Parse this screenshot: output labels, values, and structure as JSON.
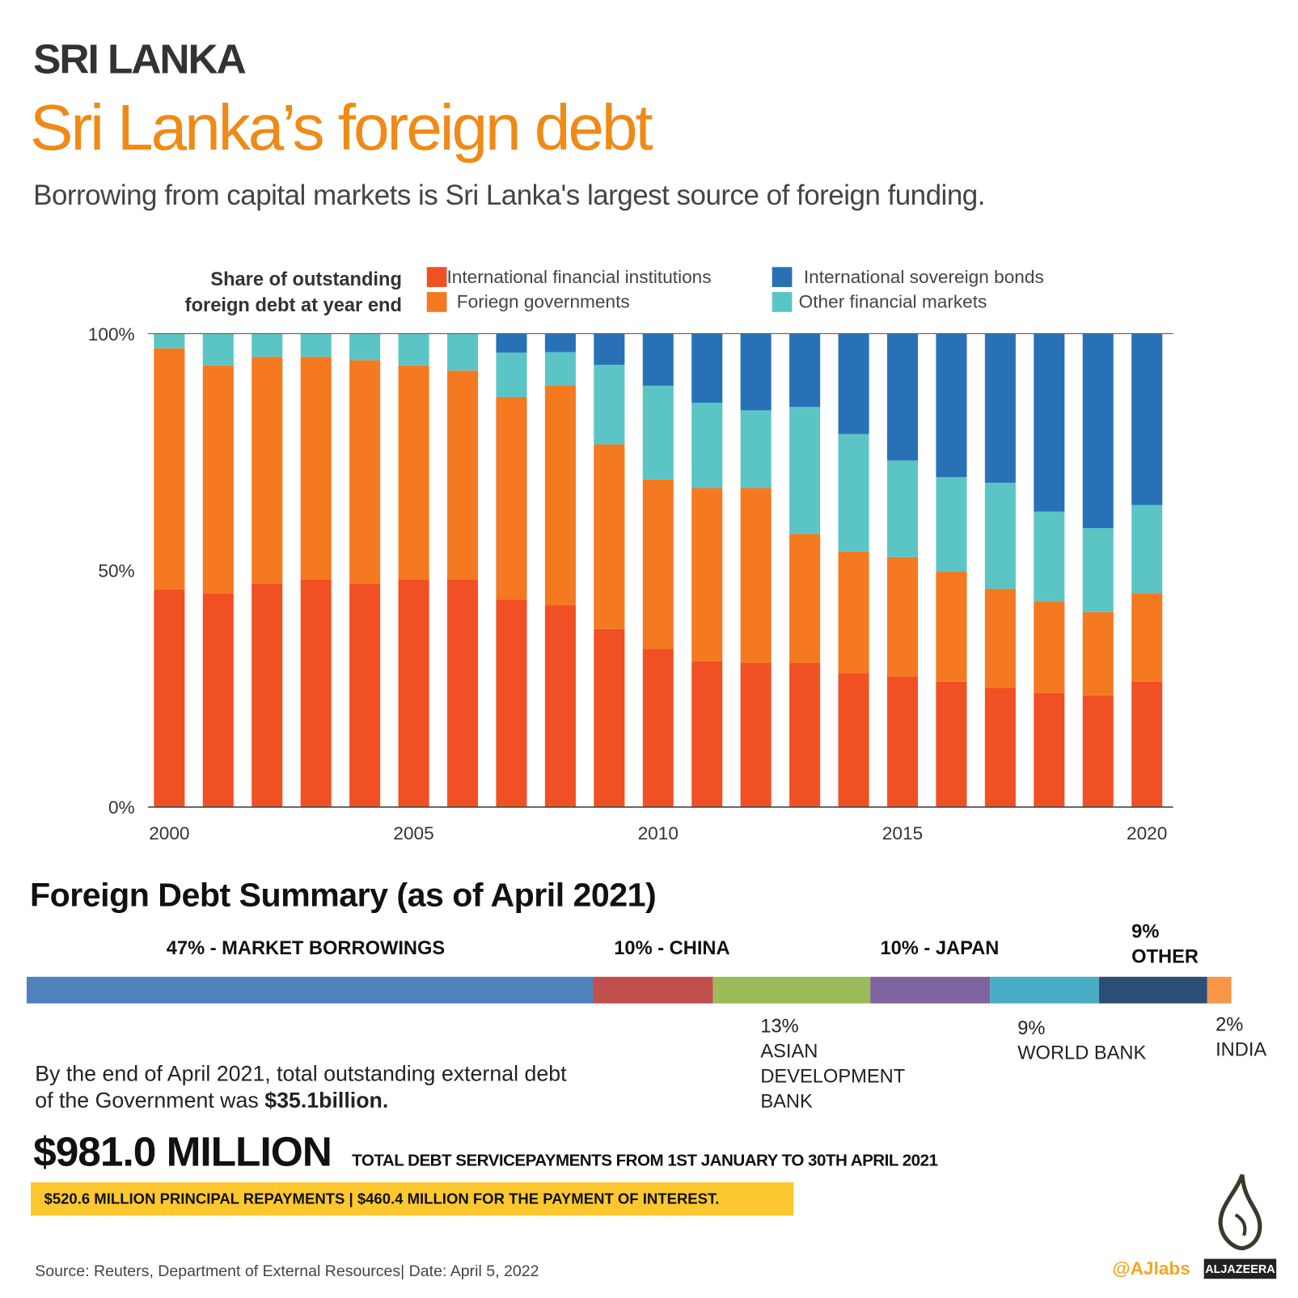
{
  "header": {
    "kicker": "SRI LANKA",
    "title": "Sri Lanka’s foreign debt",
    "subtitle": "Borrowing from  capital markets is Sri Lanka's largest source of foreign funding."
  },
  "colors": {
    "ifi": "#f05023",
    "fg": "#f47920",
    "isb": "#2971b7",
    "ofm": "#5bc5c6",
    "title": "#ef8a17",
    "highlight": "#fdc82f"
  },
  "chart_data": {
    "type": "bar",
    "stacked": true,
    "title": "Share of outstanding foreign debt at year end",
    "ylim": [
      0,
      100
    ],
    "yticks": [
      "0%",
      "50%",
      "100%"
    ],
    "xtick_labels": [
      "2000",
      "2005",
      "2010",
      "2015",
      "2020"
    ],
    "legend_position": "top",
    "categories": [
      2000,
      2001,
      2002,
      2003,
      2004,
      2005,
      2006,
      2007,
      2008,
      2009,
      2010,
      2011,
      2012,
      2013,
      2014,
      2015,
      2016,
      2017,
      2018,
      2019,
      2020
    ],
    "series": [
      {
        "name": "International financial institutions",
        "color": "#f05023",
        "values": [
          46.0,
          45.1,
          47.2,
          48.1,
          47.2,
          48.1,
          48.1,
          43.8,
          42.6,
          37.6,
          33.4,
          30.8,
          30.4,
          30.4,
          28.3,
          27.6,
          26.5,
          25.1,
          24.1,
          23.6,
          26.5
        ]
      },
      {
        "name": "Foriegn governments",
        "color": "#f47920",
        "values": [
          50.9,
          48.2,
          47.9,
          47.0,
          47.2,
          45.2,
          44.1,
          42.8,
          46.5,
          39.0,
          35.8,
          36.6,
          37.0,
          27.3,
          25.7,
          25.2,
          23.2,
          21.0,
          19.4,
          17.6,
          18.7
        ]
      },
      {
        "name": "Other financial markets",
        "color": "#5bc5c6",
        "values": [
          3.1,
          6.7,
          4.9,
          4.9,
          5.6,
          6.7,
          7.8,
          9.4,
          7.0,
          16.8,
          19.8,
          18.0,
          16.4,
          26.8,
          24.8,
          20.4,
          20.0,
          22.4,
          18.9,
          17.7,
          18.6
        ]
      },
      {
        "name": "International sovereign bonds",
        "color": "#2971b7",
        "values": [
          0,
          0,
          0,
          0,
          0,
          0,
          0,
          4.0,
          3.9,
          6.6,
          11.0,
          14.6,
          16.2,
          15.5,
          21.2,
          26.8,
          30.3,
          31.5,
          37.6,
          41.1,
          36.2
        ]
      }
    ],
    "legend_title_lines": [
      "Share of outstanding",
      "foreign debt at year end"
    ]
  },
  "summary": {
    "title": "Foreign Debt Summary (as of April 2021)",
    "segments": [
      {
        "label": "47% - MARKET BORROWINGS",
        "value": 47,
        "color": "#4f81bd"
      },
      {
        "label": "10% - CHINA",
        "value": 10,
        "color": "#c0504d"
      },
      {
        "label_pct": "13%",
        "label_lines": [
          "ASIAN",
          "DEVELOPMENT",
          "BANK"
        ],
        "value": 13,
        "color": "#9bbb59"
      },
      {
        "label": "10% - JAPAN",
        "value": 10,
        "color": "#8064a2"
      },
      {
        "label_pct": "9%",
        "label_lines": [
          "WORLD BANK"
        ],
        "value": 9,
        "color": "#4bacc6"
      },
      {
        "label_pct": "9%",
        "label_lines": [
          "OTHER"
        ],
        "value": 9,
        "color": "#2c4d75"
      },
      {
        "label_pct": "2%",
        "label_lines": [
          "INDIA"
        ],
        "value": 2,
        "color": "#f79646"
      }
    ],
    "total_text_1": "By the end of April 2021, total outstanding external debt",
    "total_text_2": "of the Government was ",
    "total_value": "$35.1billion.",
    "big_number": "$981.0 MILLION",
    "big_caption": "TOTAL DEBT SERVICEPAYMENTS FROM 1ST JANUARY TO 30TH APRIL 2021",
    "breakdown": "$520.6 MILLION PRINCIPAL REPAYMENTS | $460.4 MILLION FOR THE PAYMENT OF INTEREST."
  },
  "footer": {
    "source": "Source: Reuters, Department of External Resources|  Date: April 5, 2022",
    "handle": "@AJlabs",
    "logo": "ALJAZEERA"
  }
}
